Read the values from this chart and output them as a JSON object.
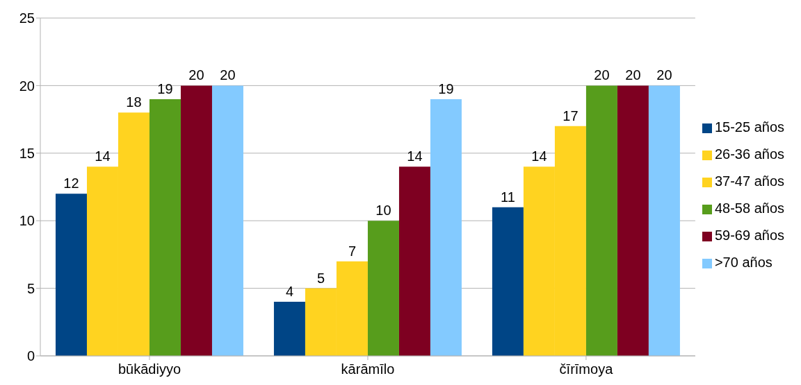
{
  "chart_data": {
    "type": "bar",
    "categories": [
      "būkādiyyo",
      "kārāmīlo",
      "čīrīmoya"
    ],
    "series": [
      {
        "name": "15-25 años",
        "color": "#004586",
        "values": [
          12,
          4,
          11
        ]
      },
      {
        "name": "26-36 años",
        "color": "#ffd320",
        "values": [
          14,
          5,
          14
        ]
      },
      {
        "name": "37-47 años",
        "color": "#ffd320",
        "values": [
          18,
          7,
          17
        ]
      },
      {
        "name": "48-58 años",
        "color": "#579d1c",
        "values": [
          19,
          10,
          20
        ]
      },
      {
        "name": "59-69 años",
        "color": "#7e0021",
        "values": [
          20,
          14,
          20
        ]
      },
      {
        "name": ">70 años",
        "color": "#83caff",
        "values": [
          20,
          19,
          20
        ]
      }
    ],
    "ylim": [
      0,
      25
    ],
    "yticks": [
      0,
      5,
      10,
      15,
      20,
      25
    ],
    "grid": "y",
    "legend": "right",
    "data_labels": true
  }
}
